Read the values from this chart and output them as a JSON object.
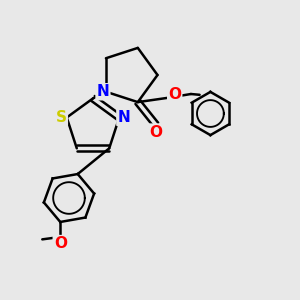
{
  "bg_color": "#e8e8e8",
  "bond_color": "#000000",
  "bond_width": 1.8,
  "atom_colors": {
    "S": "#cccc00",
    "N": "#0000ff",
    "O": "#ff0000",
    "C": "#000000"
  },
  "font_size": 10,
  "fig_size": [
    3.0,
    3.0
  ],
  "dpi": 100
}
